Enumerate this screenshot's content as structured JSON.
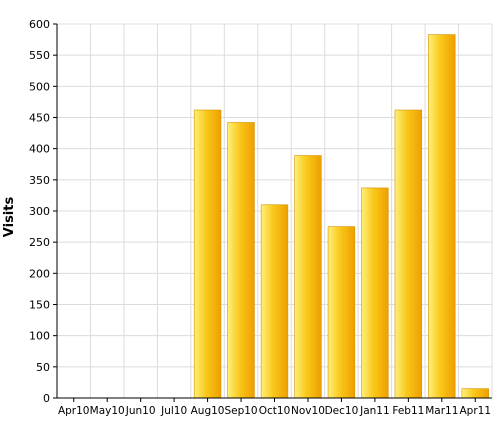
{
  "chart_data": {
    "type": "bar",
    "title": "",
    "xlabel": "",
    "ylabel": "Visits",
    "ylim": [
      0,
      600
    ],
    "ytick_step": 50,
    "grid": true,
    "categories": [
      "Apr10",
      "May10",
      "Jun10",
      "Jul10",
      "Aug10",
      "Sep10",
      "Oct10",
      "Nov10",
      "Dec10",
      "Jan11",
      "Feb11",
      "Mar11",
      "Apr11"
    ],
    "values": [
      0,
      0,
      0,
      0,
      462,
      442,
      310,
      389,
      275,
      337,
      462,
      583,
      15
    ],
    "bar_color_light": "#fdf07a",
    "bar_color_mid": "#f9c81a",
    "bar_color_dark": "#ee9f00",
    "bar_outline": "#d89200"
  }
}
